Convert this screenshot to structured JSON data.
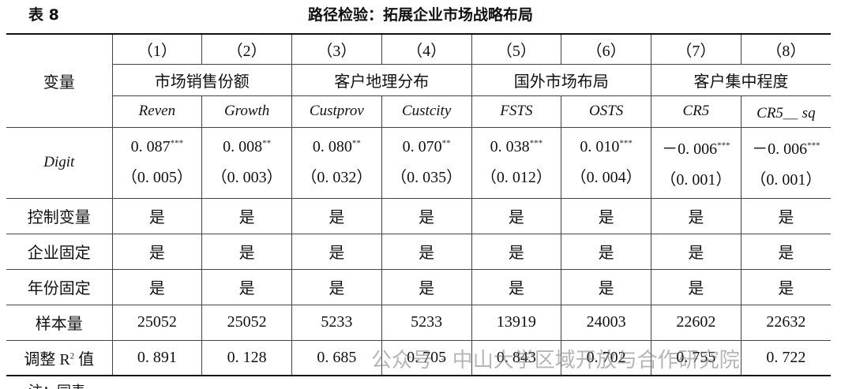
{
  "header": {
    "label": "表 8",
    "title": "路径检验：拓展企业市场战略布局"
  },
  "table": {
    "corner": "变量",
    "columns": [
      "（1）",
      "（2）",
      "（3）",
      "（4）",
      "（5）",
      "（6）",
      "（7）",
      "（8）"
    ],
    "groups": [
      "市场销售份额",
      "客户地理分布",
      "国外市场布局",
      "客户集中程度"
    ],
    "variables": [
      "Reven",
      "Growth",
      "Custprov",
      "Custcity",
      "FSTS",
      "OSTS",
      "CR5",
      "CR5＿ sq"
    ],
    "digit": {
      "label": "Digit",
      "coefficients": [
        {
          "value": "0. 087",
          "stars": "***"
        },
        {
          "value": "0. 008",
          "stars": "**"
        },
        {
          "value": "0. 080",
          "stars": "**"
        },
        {
          "value": "0. 070",
          "stars": "**"
        },
        {
          "value": "0. 038",
          "stars": "***"
        },
        {
          "value": "0. 010",
          "stars": "***"
        },
        {
          "value": "－0. 006",
          "stars": "***"
        },
        {
          "value": "－0. 006",
          "stars": "***"
        }
      ],
      "standard_errors": [
        "（0. 005）",
        "（0. 003）",
        "（0. 032）",
        "（0. 035）",
        "（0. 012）",
        "（0. 004）",
        "（0. 001）",
        "（0. 001）"
      ]
    },
    "rows": [
      {
        "label": "控制变量",
        "cells": [
          "是",
          "是",
          "是",
          "是",
          "是",
          "是",
          "是",
          "是"
        ]
      },
      {
        "label": "企业固定",
        "cells": [
          "是",
          "是",
          "是",
          "是",
          "是",
          "是",
          "是",
          "是"
        ]
      },
      {
        "label": "年份固定",
        "cells": [
          "是",
          "是",
          "是",
          "是",
          "是",
          "是",
          "是",
          "是"
        ]
      },
      {
        "label": "样本量",
        "cells": [
          25052,
          25052,
          5233,
          5233,
          13919,
          24003,
          22602,
          22632
        ]
      }
    ],
    "r2": {
      "label": "调整 R",
      "sup": "2",
      "suffix": "值",
      "cells": [
        "0. 891",
        "0. 128",
        "0. 685",
        "0. 705",
        "0. 843",
        "0. 702",
        "0. 755",
        "0. 722"
      ]
    }
  },
  "watermark": "公众号 · 中山大学区域开放与合作研究院",
  "note": "注：同表"
}
